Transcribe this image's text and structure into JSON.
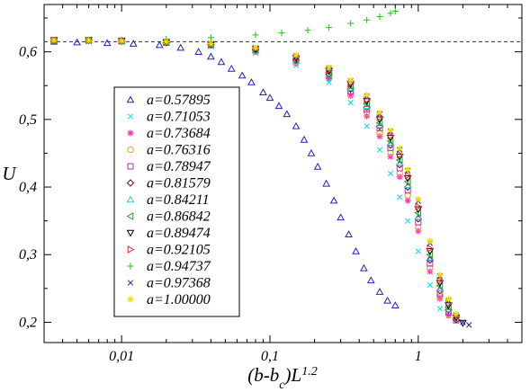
{
  "chart_data": {
    "type": "scatter",
    "xscale": "log",
    "xlim": [
      0.003,
      5
    ],
    "ylim": [
      0.17,
      0.67
    ],
    "xticks": [
      {
        "value": 0.01,
        "label": "0,01"
      },
      {
        "value": 0.1,
        "label": "0,1"
      },
      {
        "value": 1,
        "label": "1"
      }
    ],
    "yticks": [
      {
        "value": 0.2,
        "label": "0,2"
      },
      {
        "value": 0.3,
        "label": "0,3"
      },
      {
        "value": 0.4,
        "label": "0,4"
      },
      {
        "value": 0.5,
        "label": "0,5"
      },
      {
        "value": 0.6,
        "label": "0,6"
      }
    ],
    "xlabel": {
      "main": "(b-b",
      "sub": "c",
      "mid": ")L",
      "sup": "1.2"
    },
    "ylabel": "U",
    "reference_line": {
      "y": 0.615,
      "style": "dashed"
    },
    "legend_position": "left-center",
    "series": [
      {
        "name": "a=0.57895",
        "marker": "triangle-up",
        "color": "#2020d0",
        "x": [
          0.0035,
          0.005,
          0.008,
          0.012,
          0.018,
          0.025,
          0.033,
          0.04,
          0.047,
          0.055,
          0.065,
          0.075,
          0.09,
          0.1,
          0.115,
          0.13,
          0.15,
          0.17,
          0.19,
          0.21,
          0.24,
          0.27,
          0.3,
          0.34,
          0.38,
          0.43,
          0.48,
          0.55,
          0.62,
          0.7
        ],
        "y": [
          0.615,
          0.614,
          0.613,
          0.612,
          0.61,
          0.606,
          0.6,
          0.593,
          0.585,
          0.575,
          0.565,
          0.555,
          0.54,
          0.532,
          0.52,
          0.508,
          0.49,
          0.47,
          0.45,
          0.43,
          0.405,
          0.38,
          0.355,
          0.33,
          0.305,
          0.28,
          0.262,
          0.245,
          0.232,
          0.225
        ]
      },
      {
        "name": "a=0.71053",
        "marker": "x-thin",
        "color": "#00e0e0",
        "x": [
          0.0035,
          0.006,
          0.01,
          0.02,
          0.04,
          0.08,
          0.15,
          0.25,
          0.35,
          0.45,
          0.55,
          0.65,
          0.75,
          0.85,
          1.0,
          1.2,
          1.4
        ],
        "y": [
          0.617,
          0.616,
          0.615,
          0.613,
          0.608,
          0.598,
          0.58,
          0.555,
          0.525,
          0.49,
          0.455,
          0.42,
          0.385,
          0.35,
          0.305,
          0.255,
          0.22
        ]
      },
      {
        "name": "a=0.73684",
        "marker": "star",
        "color": "#ff30c0",
        "x": [
          0.0035,
          0.006,
          0.01,
          0.02,
          0.04,
          0.08,
          0.15,
          0.25,
          0.35,
          0.45,
          0.55,
          0.65,
          0.75,
          0.85,
          1.0,
          1.2,
          1.4,
          1.6
        ],
        "y": [
          0.617,
          0.617,
          0.616,
          0.614,
          0.61,
          0.6,
          0.583,
          0.56,
          0.535,
          0.505,
          0.475,
          0.445,
          0.415,
          0.38,
          0.335,
          0.275,
          0.235,
          0.21
        ]
      },
      {
        "name": "a=0.76316",
        "marker": "circle",
        "color": "#e8a000",
        "x": [
          0.0035,
          0.006,
          0.01,
          0.02,
          0.04,
          0.08,
          0.15,
          0.25,
          0.35,
          0.45,
          0.55,
          0.65,
          0.75,
          0.85,
          1.0,
          1.2,
          1.4,
          1.6
        ],
        "y": [
          0.617,
          0.617,
          0.616,
          0.614,
          0.61,
          0.601,
          0.585,
          0.562,
          0.538,
          0.51,
          0.48,
          0.45,
          0.42,
          0.388,
          0.34,
          0.28,
          0.238,
          0.212
        ]
      },
      {
        "name": "a=0.78947",
        "marker": "square",
        "color": "#b030c0",
        "x": [
          0.0035,
          0.006,
          0.01,
          0.02,
          0.04,
          0.08,
          0.15,
          0.25,
          0.35,
          0.45,
          0.55,
          0.65,
          0.75,
          0.85,
          1.0,
          1.2,
          1.4,
          1.6,
          1.8
        ],
        "y": [
          0.617,
          0.617,
          0.616,
          0.614,
          0.61,
          0.602,
          0.587,
          0.565,
          0.542,
          0.515,
          0.487,
          0.458,
          0.428,
          0.395,
          0.348,
          0.287,
          0.243,
          0.215,
          0.203
        ]
      },
      {
        "name": "a=0.81579",
        "marker": "diamond",
        "color": "#700040",
        "x": [
          0.0035,
          0.006,
          0.01,
          0.02,
          0.04,
          0.08,
          0.15,
          0.25,
          0.35,
          0.45,
          0.55,
          0.65,
          0.75,
          0.85,
          1.0,
          1.2,
          1.4,
          1.6,
          1.8
        ],
        "y": [
          0.617,
          0.617,
          0.616,
          0.614,
          0.611,
          0.603,
          0.588,
          0.567,
          0.545,
          0.518,
          0.49,
          0.462,
          0.433,
          0.4,
          0.353,
          0.292,
          0.247,
          0.218,
          0.204
        ]
      },
      {
        "name": "a=0.84211",
        "marker": "triangle-up",
        "color": "#30d0c0",
        "x": [
          0.0035,
          0.006,
          0.01,
          0.02,
          0.04,
          0.08,
          0.15,
          0.25,
          0.35,
          0.45,
          0.55,
          0.65,
          0.75,
          0.85,
          1.0,
          1.2,
          1.4,
          1.6
        ],
        "y": [
          0.617,
          0.617,
          0.616,
          0.614,
          0.61,
          0.602,
          0.586,
          0.566,
          0.547,
          0.52,
          0.492,
          0.465,
          0.436,
          0.403,
          0.356,
          0.296,
          0.25,
          0.219
        ]
      },
      {
        "name": "a=0.86842",
        "marker": "triangle-left",
        "color": "#20a020",
        "x": [
          0.0035,
          0.006,
          0.01,
          0.02,
          0.04,
          0.08,
          0.15,
          0.25,
          0.35,
          0.45,
          0.55,
          0.65,
          0.75,
          0.85,
          1.0,
          1.2,
          1.4,
          1.6,
          1.8
        ],
        "y": [
          0.617,
          0.617,
          0.616,
          0.614,
          0.611,
          0.604,
          0.59,
          0.57,
          0.549,
          0.523,
          0.495,
          0.468,
          0.44,
          0.408,
          0.362,
          0.3,
          0.254,
          0.222,
          0.205
        ]
      },
      {
        "name": "a=0.89474",
        "marker": "triangle-down",
        "color": "#000000",
        "x": [
          0.0035,
          0.006,
          0.01,
          0.02,
          0.04,
          0.08,
          0.15,
          0.25,
          0.35,
          0.45,
          0.55,
          0.65,
          0.75,
          0.85,
          1.0,
          1.2,
          1.4,
          1.6,
          1.8,
          2.0
        ],
        "y": [
          0.617,
          0.617,
          0.616,
          0.614,
          0.611,
          0.604,
          0.591,
          0.572,
          0.552,
          0.527,
          0.5,
          0.473,
          0.445,
          0.413,
          0.367,
          0.305,
          0.258,
          0.225,
          0.207,
          0.199
        ]
      },
      {
        "name": "a=0.92105",
        "marker": "triangle-right",
        "color": "#ff2020",
        "x": [
          0.0035,
          0.006,
          0.01,
          0.02,
          0.04,
          0.08,
          0.15,
          0.25,
          0.35,
          0.45,
          0.55,
          0.65,
          0.75,
          0.85,
          1.0,
          1.2,
          1.4,
          1.6,
          1.8
        ],
        "y": [
          0.617,
          0.617,
          0.616,
          0.614,
          0.611,
          0.605,
          0.592,
          0.573,
          0.553,
          0.529,
          0.503,
          0.476,
          0.448,
          0.417,
          0.371,
          0.309,
          0.262,
          0.228,
          0.208
        ]
      },
      {
        "name": "a=0.94737",
        "marker": "plus",
        "color": "#20c020",
        "x": [
          0.0035,
          0.006,
          0.01,
          0.02,
          0.04,
          0.08,
          0.12,
          0.18,
          0.25,
          0.35,
          0.45,
          0.55,
          0.65,
          0.7
        ],
        "y": [
          0.617,
          0.617,
          0.618,
          0.619,
          0.621,
          0.625,
          0.628,
          0.632,
          0.636,
          0.642,
          0.647,
          0.652,
          0.657,
          0.66
        ]
      },
      {
        "name": "a=0.97368",
        "marker": "x",
        "color": "#2020a0",
        "x": [
          0.0035,
          0.006,
          0.01,
          0.02,
          0.04,
          0.08,
          0.15,
          0.25,
          0.35,
          0.45,
          0.55,
          0.65,
          0.75,
          0.85,
          1.0,
          1.2,
          1.4,
          1.6,
          1.8,
          2.0,
          2.2
        ],
        "y": [
          0.617,
          0.617,
          0.616,
          0.615,
          0.612,
          0.606,
          0.594,
          0.576,
          0.557,
          0.534,
          0.508,
          0.482,
          0.455,
          0.424,
          0.379,
          0.317,
          0.268,
          0.232,
          0.211,
          0.2,
          0.196
        ]
      },
      {
        "name": "a=1.00000",
        "marker": "star",
        "color": "#f0e000",
        "x": [
          0.0035,
          0.006,
          0.01,
          0.02,
          0.04,
          0.08,
          0.15,
          0.25,
          0.35,
          0.45,
          0.55,
          0.65,
          0.75,
          0.85,
          1.0,
          1.2,
          1.4,
          1.6,
          1.8
        ],
        "y": [
          0.617,
          0.617,
          0.616,
          0.615,
          0.612,
          0.606,
          0.595,
          0.577,
          0.558,
          0.536,
          0.51,
          0.484,
          0.457,
          0.426,
          0.382,
          0.32,
          0.27,
          0.234,
          0.212
        ]
      }
    ]
  }
}
